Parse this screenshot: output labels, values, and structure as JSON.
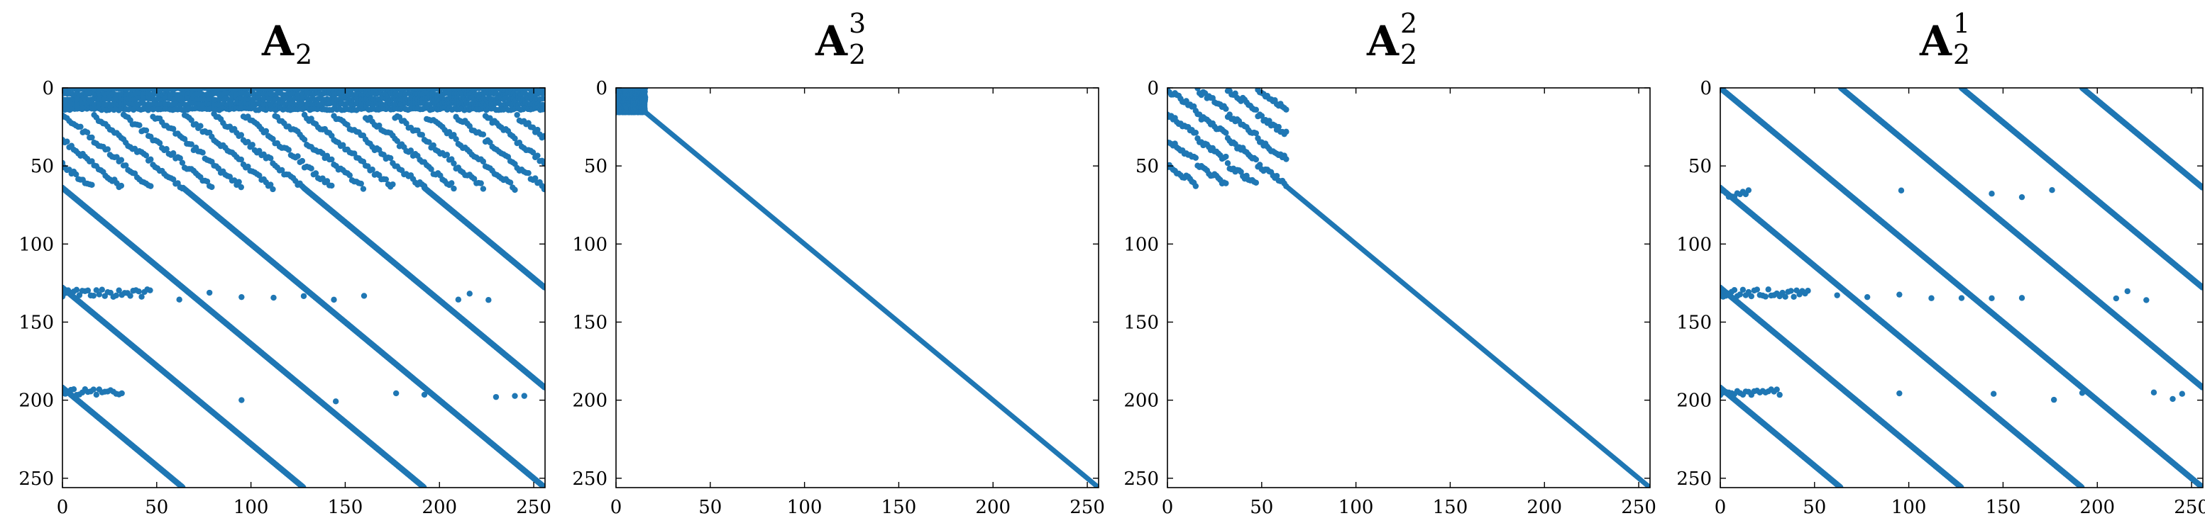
{
  "accent": "#1f77b4",
  "chart_data": [
    {
      "type": "scatter",
      "title": "A",
      "title_subscript": "2",
      "title_superscript": "",
      "pattern": "A2",
      "xlim": [
        0,
        256
      ],
      "ylim": [
        256,
        0
      ],
      "xticks": [
        0,
        50,
        100,
        150,
        200,
        250
      ],
      "yticks": [
        0,
        50,
        100,
        150,
        200,
        250
      ],
      "xtick_labels": [
        "0",
        "50",
        "100",
        "150",
        "200",
        "250"
      ],
      "ytick_labels": [
        "0",
        "50",
        "100",
        "150",
        "200",
        "250"
      ]
    },
    {
      "type": "scatter",
      "title": "A",
      "title_subscript": "2",
      "title_superscript": "3",
      "pattern": "A2^3",
      "xlim": [
        0,
        256
      ],
      "ylim": [
        256,
        0
      ],
      "xticks": [
        0,
        50,
        100,
        150,
        200,
        250
      ],
      "yticks": [
        0,
        50,
        100,
        150,
        200,
        250
      ],
      "xtick_labels": [
        "0",
        "50",
        "100",
        "150",
        "200",
        "250"
      ],
      "ytick_labels": [
        "0",
        "50",
        "100",
        "150",
        "200",
        "250"
      ]
    },
    {
      "type": "scatter",
      "title": "A",
      "title_subscript": "2",
      "title_superscript": "2",
      "pattern": "A2^2",
      "xlim": [
        0,
        256
      ],
      "ylim": [
        256,
        0
      ],
      "xticks": [
        0,
        50,
        100,
        150,
        200,
        250
      ],
      "yticks": [
        0,
        50,
        100,
        150,
        200,
        250
      ],
      "xtick_labels": [
        "0",
        "50",
        "100",
        "150",
        "200",
        "250"
      ],
      "ytick_labels": [
        "0",
        "50",
        "100",
        "150",
        "200",
        "250"
      ]
    },
    {
      "type": "scatter",
      "title": "A",
      "title_subscript": "2",
      "title_superscript": "1",
      "pattern": "A2^1",
      "xlim": [
        0,
        256
      ],
      "ylim": [
        256,
        0
      ],
      "xticks": [
        0,
        50,
        100,
        150,
        200,
        250
      ],
      "yticks": [
        0,
        50,
        100,
        150,
        200,
        250
      ],
      "xtick_labels": [
        "0",
        "50",
        "100",
        "150",
        "200",
        "250"
      ],
      "ytick_labels": [
        "0",
        "50",
        "100",
        "150",
        "200",
        "250"
      ]
    }
  ]
}
